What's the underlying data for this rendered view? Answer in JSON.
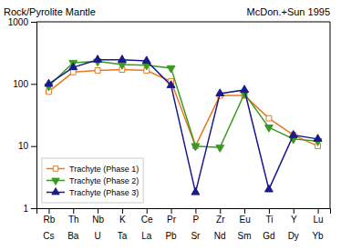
{
  "chart_data": {
    "type": "line",
    "title": "McDon.+Sun 1995",
    "y_label": "Rock/Pyrolite Mantle",
    "categories": [
      "Rb",
      "Th",
      "Nb",
      "K",
      "Ce",
      "Pr",
      "P",
      "Zr",
      "Eu",
      "Ti",
      "Y",
      "Lu"
    ],
    "annotations": [
      "Cs",
      "Ba",
      "U",
      "Ta",
      "La",
      "Pb",
      "Sr",
      "Nd",
      "Sm",
      "Gd",
      "Dy",
      "Yb"
    ],
    "series": [
      {
        "name": "Trachyte (Phase 1)",
        "color": "#E87820",
        "marker": "square-open",
        "values": [
          75,
          155,
          165,
          170,
          165,
          110,
          10,
          65,
          65,
          28,
          15,
          10
        ]
      },
      {
        "name": "Trachyte (Phase 2)",
        "color": "#3a9a20",
        "marker": "triangle-down",
        "values": [
          92,
          220,
          230,
          205,
          200,
          180,
          10,
          9.5,
          70,
          20,
          13,
          12
        ]
      },
      {
        "name": "Trachyte (Phase 3)",
        "color": "#1a1a8c",
        "marker": "triangle-up",
        "values": [
          100,
          185,
          245,
          245,
          235,
          95,
          1.8,
          70,
          80,
          2.0,
          15,
          13
        ]
      }
    ],
    "log": "y",
    "ylim": [
      1,
      1000
    ],
    "yticks": [
      1,
      10,
      100,
      1000
    ],
    "grid": false,
    "legend": "lower left"
  }
}
